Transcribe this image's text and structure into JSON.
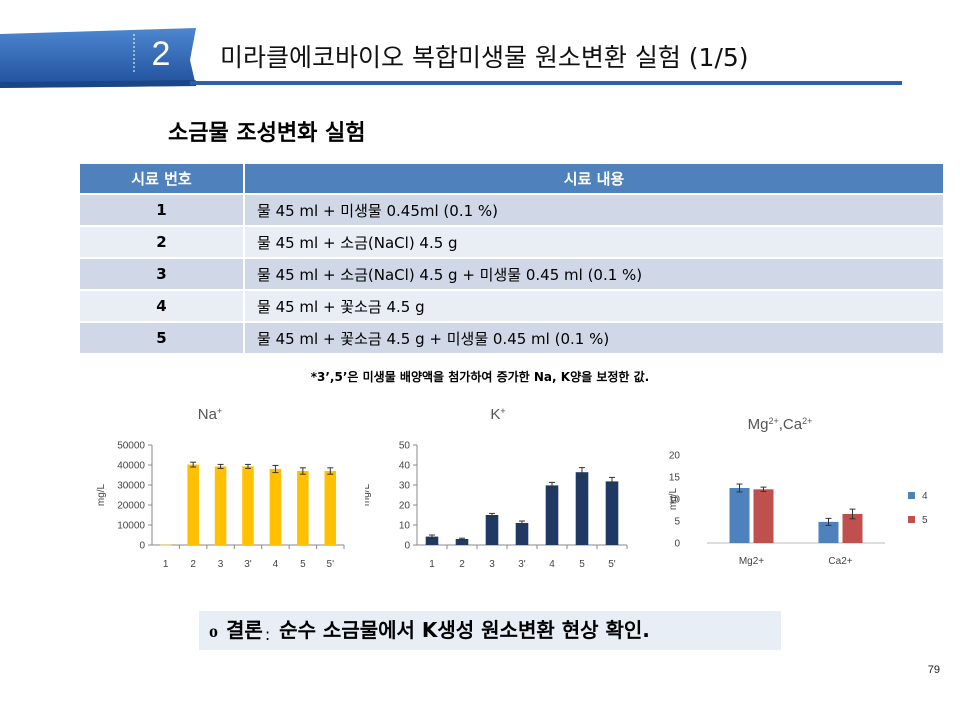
{
  "header": {
    "section_number": "2",
    "title": "미라클에코바이오 복합미생물 원소변환 실험 (1/5)",
    "subtitle": "소금물 조성변화 실험",
    "accent_color": "#2e5fa8"
  },
  "table": {
    "columns": [
      "시료 번호",
      "시료 내용"
    ],
    "rows": [
      {
        "no": "1",
        "content": "물 45 ml + 미생물 0.45ml (0.1 %)"
      },
      {
        "no": "2",
        "content": "물 45 ml + 소금(NaCl) 4.5 g"
      },
      {
        "no": "3",
        "content": "물 45 ml + 소금(NaCl) 4.5 g + 미생물 0.45 ml (0.1 %)"
      },
      {
        "no": "4",
        "content": "물 45 ml + 꽃소금 4.5 g"
      },
      {
        "no": "5",
        "content": "물 45 ml + 꽃소금 4.5 g + 미생물 0.45 ml (0.1 %)"
      }
    ],
    "note": "*3’,5’은 미생물 배양액을 첨가하여 증가한 Na, K양을 보정한 값."
  },
  "chart_data": [
    {
      "type": "bar",
      "title": "Na+",
      "title_base": "Na",
      "title_sup": "+",
      "ylabel": "mg/L",
      "categories": [
        "1",
        "2",
        "3",
        "3'",
        "4",
        "5",
        "5'"
      ],
      "values": [
        150,
        40200,
        39300,
        39300,
        38000,
        37000,
        37000
      ],
      "errors": [
        0,
        1200,
        1000,
        1000,
        1800,
        1600,
        1600
      ],
      "ylim": [
        0,
        50000
      ],
      "yticks": [
        "0",
        "10000",
        "20000",
        "30000",
        "40000",
        "50000"
      ],
      "color": "#ffc000",
      "grid": false
    },
    {
      "type": "bar",
      "title": "K+",
      "title_base": "K",
      "title_sup": "+",
      "ylabel": "mg/L",
      "categories": [
        "1",
        "2",
        "3",
        "3'",
        "4",
        "5",
        "5'"
      ],
      "values": [
        4.2,
        3.0,
        15.0,
        11.0,
        29.8,
        36.4,
        31.8
      ],
      "errors": [
        0.8,
        0.4,
        0.8,
        1.0,
        1.5,
        2.3,
        2.0
      ],
      "ylim": [
        0,
        50
      ],
      "yticks": [
        "0",
        "10",
        "20",
        "30",
        "40",
        "50"
      ],
      "color": "#1f3864",
      "grid": false
    },
    {
      "type": "bar",
      "title": "Mg2+,Ca2+",
      "title_parts": [
        "Mg",
        "2+",
        ",Ca",
        "2+"
      ],
      "ylabel": "mg/L",
      "categories": [
        "Mg2+",
        "Ca2+"
      ],
      "series": [
        {
          "name": "4",
          "values": [
            12.5,
            4.8
          ],
          "errors": [
            0.9,
            0.8
          ],
          "color": "#4f81bd"
        },
        {
          "name": "5",
          "values": [
            12.2,
            6.6
          ],
          "errors": [
            0.5,
            1.1
          ],
          "color": "#c0504d"
        }
      ],
      "ylim": [
        0,
        20
      ],
      "yticks": [
        "0",
        "5",
        "10",
        "15",
        "20"
      ],
      "legend": "right",
      "grid": false
    }
  ],
  "conclusion": {
    "bullet": "o",
    "label": "결론",
    "colon": ":",
    "text": " 순수 소금물에서 K생성 원소변환 현상 확인."
  },
  "page_number": "79"
}
